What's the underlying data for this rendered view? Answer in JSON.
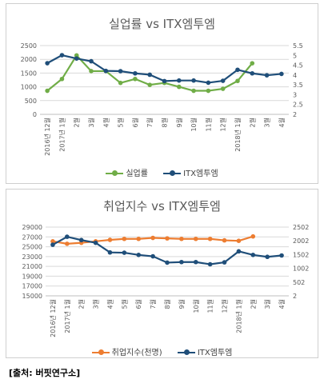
{
  "x_labels": [
    "2016년 12월",
    "2017년 1월",
    "2월",
    "3월",
    "4월",
    "5월",
    "6월",
    "7월",
    "8월",
    "9월",
    "10월",
    "11월",
    "12월",
    "2018년 1월",
    "2월",
    "3월",
    "4월"
  ],
  "chart_data": [
    {
      "type": "line",
      "title": "실업률 vs ITX엠투엠",
      "categories": [
        "2016년 12월",
        "2017년 1월",
        "2월",
        "3월",
        "4월",
        "5월",
        "6월",
        "7월",
        "8월",
        "9월",
        "10월",
        "11월",
        "12월",
        "2018년 1월",
        "2월",
        "3월",
        "4월"
      ],
      "y_left": {
        "ticks": [
          "0",
          "500",
          "1000",
          "1500",
          "2000",
          "2500"
        ],
        "range": [
          0,
          2500
        ]
      },
      "y_right": {
        "ticks": [
          "2",
          "2.5",
          "3",
          "3.5",
          "4",
          "4.5",
          "5",
          "5.5"
        ],
        "range": [
          2,
          5.5
        ]
      },
      "series": [
        {
          "name": "실업률",
          "color": "#70ad47",
          "axis": "right",
          "values": [
            3.2,
            3.8,
            5.0,
            4.2,
            4.2,
            3.6,
            3.8,
            3.5,
            3.6,
            3.4,
            3.2,
            3.2,
            3.3,
            3.7,
            4.6,
            null,
            null
          ]
        },
        {
          "name": "ITX엠투엠",
          "color": "#1f4e79",
          "axis": "left",
          "values": [
            1860,
            2150,
            2030,
            1930,
            1580,
            1570,
            1490,
            1440,
            1210,
            1230,
            1230,
            1150,
            1220,
            1620,
            1490,
            1420,
            1470
          ]
        }
      ],
      "legend": "bottom"
    },
    {
      "type": "line",
      "title": "취업지수 vs ITX엠투엠",
      "categories": [
        "2016년 12월",
        "2017년 1월",
        "2월",
        "3월",
        "4월",
        "5월",
        "6월",
        "7월",
        "8월",
        "9월",
        "10월",
        "11월",
        "12월",
        "2018년 1월",
        "2월",
        "3월",
        "4월"
      ],
      "y_left": {
        "ticks": [
          "15000",
          "17000",
          "19000",
          "21000",
          "23000",
          "25000",
          "27000",
          "29000"
        ],
        "range": [
          15000,
          29000
        ]
      },
      "y_right": {
        "ticks": [
          "2",
          "502",
          "1002",
          "1502",
          "2002",
          "2502"
        ],
        "range": [
          2,
          2502
        ]
      },
      "series": [
        {
          "name": "취업지수(천명)",
          "color": "#ed7d31",
          "axis": "left",
          "values": [
            26100,
            25600,
            25800,
            26100,
            26400,
            26600,
            26600,
            26800,
            26700,
            26600,
            26600,
            26600,
            26300,
            26200,
            27100,
            null,
            null
          ]
        },
        {
          "name": "ITX엠투엠",
          "color": "#1f4e79",
          "axis": "right",
          "values": [
            1860,
            2150,
            2030,
            1930,
            1580,
            1570,
            1490,
            1440,
            1210,
            1230,
            1230,
            1150,
            1220,
            1620,
            1490,
            1420,
            1470
          ]
        }
      ],
      "legend": "bottom"
    }
  ],
  "source_text": "[출처: 버핏연구소]"
}
